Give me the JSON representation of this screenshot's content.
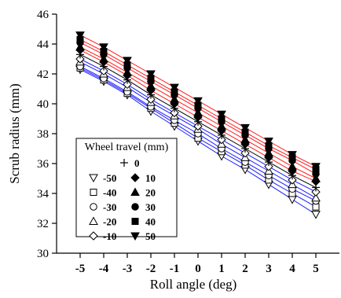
{
  "chart_data": {
    "type": "scatter",
    "xlabel": "Roll angle (deg)",
    "ylabel": "Scrub radius (mm)",
    "xlim": [
      -6,
      6
    ],
    "ylim": [
      30,
      46
    ],
    "x_ticks": [
      -5,
      -4,
      -3,
      -2,
      -1,
      0,
      1,
      2,
      3,
      4,
      5
    ],
    "y_ticks": [
      30,
      32,
      34,
      36,
      38,
      40,
      42,
      44,
      46
    ],
    "x": [
      -5,
      -4,
      -3,
      -2,
      -1,
      0,
      1,
      2,
      3,
      4,
      5
    ],
    "grid": false,
    "legend": {
      "title": "Wheel travel (mm)",
      "placement": "lower-left"
    },
    "series": [
      {
        "name": "-50",
        "marker": "triangle-down-open",
        "line_color": "#1a1aff",
        "values": [
          42.3,
          41.5,
          40.6,
          39.5,
          38.5,
          37.5,
          36.5,
          35.6,
          34.6,
          33.6,
          32.6
        ]
      },
      {
        "name": "-40",
        "marker": "square-open",
        "line_color": "#1a1aff",
        "values": [
          42.4,
          41.6,
          40.7,
          39.7,
          38.7,
          37.7,
          36.8,
          35.9,
          34.9,
          34.0,
          33.1
        ]
      },
      {
        "name": "-30",
        "marker": "circle-open",
        "line_color": "#1a1aff",
        "values": [
          42.5,
          41.7,
          40.8,
          39.8,
          38.9,
          38.0,
          37.0,
          36.1,
          35.2,
          34.3,
          33.5
        ]
      },
      {
        "name": "-20",
        "marker": "triangle-up-open",
        "line_color": "#1a1aff",
        "values": [
          42.8,
          42.0,
          41.1,
          40.1,
          39.2,
          38.3,
          37.3,
          36.4,
          35.5,
          34.6,
          33.7
        ]
      },
      {
        "name": "-10",
        "marker": "diamond-open",
        "line_color": "#1a1aff",
        "values": [
          43.0,
          42.2,
          41.3,
          40.3,
          39.4,
          38.5,
          37.6,
          36.7,
          35.8,
          34.9,
          34.1
        ]
      },
      {
        "name": "0",
        "marker": "plus",
        "line_color": "#000000",
        "values": [
          43.3,
          42.5,
          41.6,
          40.6,
          39.7,
          38.8,
          37.9,
          37.0,
          36.1,
          35.2,
          34.4
        ]
      },
      {
        "name": "10",
        "marker": "diamond-filled",
        "line_color": "#ff1a1a",
        "values": [
          43.6,
          42.8,
          41.9,
          40.9,
          40.0,
          39.1,
          38.2,
          37.3,
          36.4,
          35.5,
          34.8
        ]
      },
      {
        "name": "20",
        "marker": "triangle-up-filled",
        "line_color": "#ff1a1a",
        "values": [
          43.8,
          43.0,
          42.1,
          41.2,
          40.3,
          39.4,
          38.5,
          37.6,
          36.7,
          35.8,
          35.0
        ]
      },
      {
        "name": "30",
        "marker": "circle-filled",
        "line_color": "#ff1a1a",
        "values": [
          44.1,
          43.3,
          42.4,
          41.5,
          40.6,
          39.7,
          38.8,
          37.9,
          37.0,
          36.2,
          35.3
        ]
      },
      {
        "name": "40",
        "marker": "square-filled",
        "line_color": "#ff1a1a",
        "values": [
          44.3,
          43.5,
          42.6,
          41.7,
          40.8,
          39.9,
          39.0,
          38.1,
          37.2,
          36.4,
          35.6
        ]
      },
      {
        "name": "50",
        "marker": "triangle-down-filled",
        "line_color": "#ff1a1a",
        "values": [
          44.6,
          43.8,
          42.9,
          42.0,
          41.1,
          40.2,
          39.3,
          38.4,
          37.5,
          36.6,
          35.8
        ]
      }
    ]
  }
}
